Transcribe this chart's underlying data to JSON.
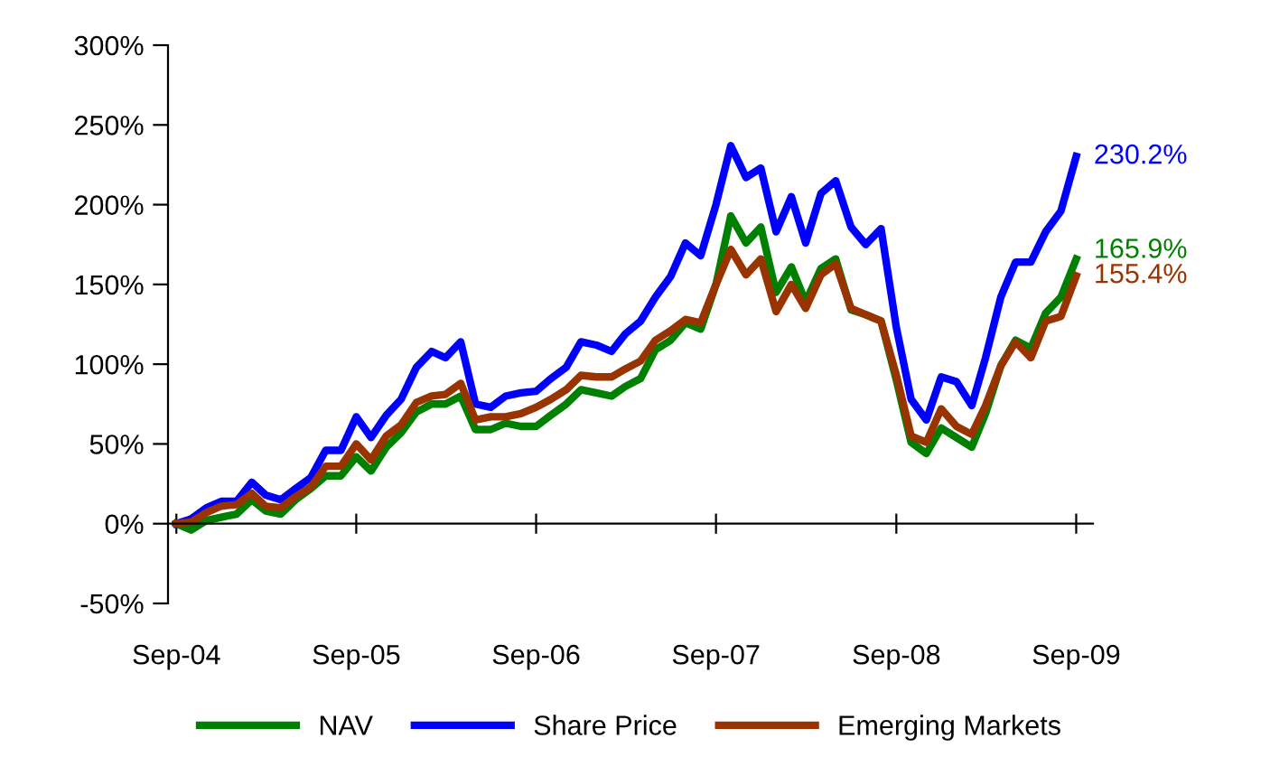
{
  "chart_data": {
    "type": "line",
    "x": [
      "2004-09",
      "2004-10",
      "2004-11",
      "2004-12",
      "2005-01",
      "2005-02",
      "2005-03",
      "2005-04",
      "2005-05",
      "2005-06",
      "2005-07",
      "2005-08",
      "2005-09",
      "2005-10",
      "2005-11",
      "2005-12",
      "2006-01",
      "2006-02",
      "2006-03",
      "2006-04",
      "2006-05",
      "2006-06",
      "2006-07",
      "2006-08",
      "2006-09",
      "2006-10",
      "2006-11",
      "2006-12",
      "2007-01",
      "2007-02",
      "2007-03",
      "2007-04",
      "2007-05",
      "2007-06",
      "2007-07",
      "2007-08",
      "2007-09",
      "2007-10",
      "2007-11",
      "2007-12",
      "2008-01",
      "2008-02",
      "2008-03",
      "2008-04",
      "2008-05",
      "2008-06",
      "2008-07",
      "2008-08",
      "2008-09",
      "2008-10",
      "2008-11",
      "2008-12",
      "2009-01",
      "2009-02",
      "2009-03",
      "2009-04",
      "2009-05",
      "2009-06",
      "2009-07",
      "2009-08",
      "2009-09"
    ],
    "series": [
      {
        "name": "NAV",
        "color": "#008000",
        "values": [
          0,
          -4,
          2,
          4,
          6,
          15,
          8,
          6,
          15,
          22,
          30,
          30,
          42,
          33,
          48,
          57,
          70,
          75,
          75,
          80,
          59,
          59,
          63,
          61,
          61,
          68,
          75,
          84,
          82,
          80,
          86,
          91,
          109,
          115,
          126,
          122,
          150,
          193,
          176,
          186,
          145,
          161,
          139,
          160,
          166,
          134,
          131,
          127,
          90,
          51,
          44,
          60,
          54,
          48,
          69,
          99,
          115,
          110,
          132,
          142,
          165.9
        ],
        "value_labels": [
          null,
          null,
          null,
          null,
          null,
          null,
          null,
          null,
          null,
          null,
          null,
          null,
          null,
          null,
          null,
          null,
          null,
          null,
          null,
          null,
          null,
          null,
          null,
          null,
          null,
          null,
          null,
          null,
          null,
          null,
          null,
          null,
          null,
          null,
          null,
          null,
          null,
          null,
          null,
          null,
          null,
          null,
          null,
          null,
          null,
          null,
          null,
          null,
          null,
          null,
          null,
          null,
          null,
          null,
          null,
          null,
          null,
          null,
          null,
          null,
          "165.9%"
        ]
      },
      {
        "name": "Share Price",
        "color": "#0000ff",
        "values": [
          0,
          3,
          10,
          14,
          14,
          26,
          18,
          15,
          22,
          29,
          46,
          46,
          67,
          54,
          68,
          78,
          98,
          108,
          104,
          114,
          75,
          73,
          80,
          82,
          83,
          91,
          98,
          114,
          112,
          108,
          119,
          127,
          142,
          155,
          176,
          168,
          200,
          237,
          217,
          223,
          183,
          205,
          176,
          207,
          215,
          186,
          175,
          185,
          123,
          78,
          65,
          92,
          89,
          74,
          104,
          142,
          164,
          164,
          183,
          196,
          230.2
        ],
        "value_labels": [
          null,
          null,
          null,
          null,
          null,
          null,
          null,
          null,
          null,
          null,
          null,
          null,
          null,
          null,
          null,
          null,
          null,
          null,
          null,
          null,
          null,
          null,
          null,
          null,
          null,
          null,
          null,
          null,
          null,
          null,
          null,
          null,
          null,
          null,
          null,
          null,
          null,
          null,
          null,
          null,
          null,
          null,
          null,
          null,
          null,
          null,
          null,
          null,
          null,
          null,
          null,
          null,
          null,
          null,
          null,
          null,
          null,
          null,
          null,
          null,
          "230.2%"
        ]
      },
      {
        "name": "Emerging Markets",
        "color": "#993300",
        "values": [
          0,
          1,
          7,
          11,
          12,
          19,
          11,
          10,
          17,
          23,
          36,
          36,
          50,
          40,
          55,
          62,
          76,
          80,
          81,
          88,
          65,
          67,
          67,
          69,
          73,
          78,
          84,
          93,
          92,
          92,
          97,
          102,
          115,
          121,
          128,
          126,
          150,
          172,
          156,
          166,
          133,
          150,
          135,
          156,
          163,
          135,
          131,
          127,
          93,
          55,
          51,
          72,
          61,
          56,
          74,
          99,
          114,
          104,
          127,
          130,
          155.4
        ],
        "value_labels": [
          null,
          null,
          null,
          null,
          null,
          null,
          null,
          null,
          null,
          null,
          null,
          null,
          null,
          null,
          null,
          null,
          null,
          null,
          null,
          null,
          null,
          null,
          null,
          null,
          null,
          null,
          null,
          null,
          null,
          null,
          null,
          null,
          null,
          null,
          null,
          null,
          null,
          null,
          null,
          null,
          null,
          null,
          null,
          null,
          null,
          null,
          null,
          null,
          null,
          null,
          null,
          null,
          null,
          null,
          null,
          null,
          null,
          null,
          null,
          null,
          "155.4%"
        ]
      }
    ],
    "xlim": [
      "2004-08-15",
      "2009-10-05"
    ],
    "xticks": [
      {
        "value": "2004-09",
        "label": "Sep-04"
      },
      {
        "value": "2005-09",
        "label": "Sep-05"
      },
      {
        "value": "2006-09",
        "label": "Sep-06"
      },
      {
        "value": "2007-09",
        "label": "Sep-07"
      },
      {
        "value": "2008-09",
        "label": "Sep-08"
      },
      {
        "value": "2009-09",
        "label": "Sep-09"
      }
    ],
    "ylim": [
      -50,
      300
    ],
    "yticks": [
      {
        "value": -50,
        "label": "-50%"
      },
      {
        "value": 0,
        "label": "0%"
      },
      {
        "value": 50,
        "label": "50%"
      },
      {
        "value": 100,
        "label": "100%"
      },
      {
        "value": 150,
        "label": "150%"
      },
      {
        "value": 200,
        "label": "200%"
      },
      {
        "value": 250,
        "label": "250%"
      },
      {
        "value": 300,
        "label": "300%"
      }
    ],
    "legend": "bottom",
    "marker": "none",
    "line_style": "solid"
  }
}
